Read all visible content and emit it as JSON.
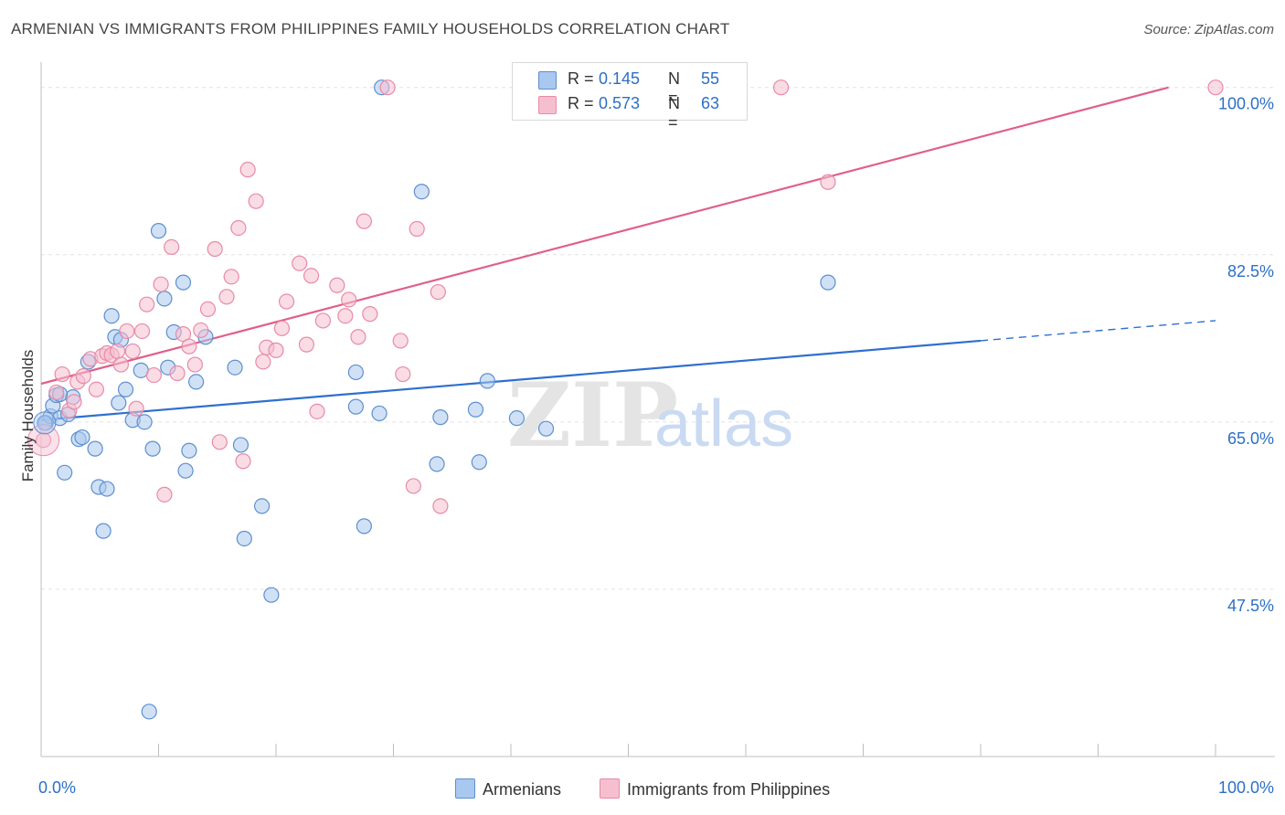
{
  "title": "ARMENIAN VS IMMIGRANTS FROM PHILIPPINES FAMILY HOUSEHOLDS CORRELATION CHART",
  "source": "Source: ZipAtlas.com",
  "watermark": {
    "zip": "ZIP",
    "atlas": "atlas"
  },
  "legend": {
    "armenians": {
      "r_label": "R =",
      "r_value": "0.145",
      "n_label": "N =",
      "n_value": "55"
    },
    "philippines": {
      "r_label": "R =",
      "r_value": "0.573",
      "n_label": "N =",
      "n_value": "63"
    }
  },
  "bottom_legend": {
    "armenians": "Armenians",
    "philippines": "Immigrants from Philippines"
  },
  "x_axis": {
    "min_label": "0.0%",
    "max_label": "100.0%"
  },
  "colors": {
    "blue_fill": "#a9c8ef",
    "blue_stroke": "#5d8fd0",
    "blue_line": "#2f6fcf",
    "pink_fill": "#f6bfd0",
    "pink_stroke": "#e88aa8",
    "pink_line": "#e0608a",
    "tick_label": "#2c6fc6"
  },
  "chart_data": {
    "type": "scatter",
    "title": "ARMENIAN VS IMMIGRANTS FROM PHILIPPINES FAMILY HOUSEHOLDS CORRELATION CHART",
    "xlabel": "",
    "ylabel": "Family Households",
    "xlim": [
      0,
      100
    ],
    "ylim": [
      30,
      101.5
    ],
    "y_ticks": [
      47.5,
      65.0,
      82.5,
      100.0
    ],
    "y_tick_labels": [
      "47.5%",
      "65.0%",
      "82.5%",
      "100.0%"
    ],
    "series": [
      {
        "name": "Armenians",
        "R": 0.145,
        "N": 55,
        "trend": {
          "x0": 0,
          "y0": 65.2,
          "x1": 80,
          "y1": 73.5,
          "dash_to_x": 100,
          "dash_to_y": 75.6
        },
        "points": [
          [
            0.4,
            64.9
          ],
          [
            0.8,
            65.6
          ],
          [
            1.0,
            66.7
          ],
          [
            1.3,
            67.8
          ],
          [
            1.6,
            65.4
          ],
          [
            2.0,
            59.7
          ],
          [
            2.3,
            65.8
          ],
          [
            2.7,
            67.6
          ],
          [
            3.2,
            63.2
          ],
          [
            3.5,
            63.4
          ],
          [
            4.0,
            71.3
          ],
          [
            4.6,
            62.2
          ],
          [
            4.9,
            58.2
          ],
          [
            5.3,
            53.6
          ],
          [
            5.6,
            58.0
          ],
          [
            6.0,
            76.1
          ],
          [
            6.3,
            73.9
          ],
          [
            6.6,
            67.0
          ],
          [
            6.8,
            73.6
          ],
          [
            7.2,
            68.4
          ],
          [
            7.8,
            65.2
          ],
          [
            8.5,
            70.4
          ],
          [
            8.8,
            65.0
          ],
          [
            9.5,
            62.2
          ],
          [
            10.0,
            85.0
          ],
          [
            10.5,
            77.9
          ],
          [
            10.8,
            70.7
          ],
          [
            11.3,
            74.4
          ],
          [
            12.1,
            79.6
          ],
          [
            12.3,
            59.9
          ],
          [
            12.6,
            62.0
          ],
          [
            13.2,
            69.2
          ],
          [
            14.0,
            73.9
          ],
          [
            16.5,
            70.7
          ],
          [
            17.0,
            62.6
          ],
          [
            17.3,
            52.8
          ],
          [
            18.8,
            56.2
          ],
          [
            19.6,
            46.9
          ],
          [
            26.8,
            70.2
          ],
          [
            26.8,
            66.6
          ],
          [
            27.5,
            54.1
          ],
          [
            28.8,
            65.9
          ],
          [
            29.0,
            100.0
          ],
          [
            32.4,
            89.1
          ],
          [
            33.7,
            60.6
          ],
          [
            34.0,
            65.5
          ],
          [
            37.0,
            66.3
          ],
          [
            37.3,
            60.8
          ],
          [
            38.0,
            69.3
          ],
          [
            40.5,
            65.4
          ],
          [
            43.0,
            64.3
          ],
          [
            67.0,
            79.6
          ],
          [
            9.2,
            34.7
          ],
          [
            1.6,
            67.9
          ],
          [
            0.3,
            64.9
          ]
        ]
      },
      {
        "name": "Immigrants from Philippines",
        "R": 0.573,
        "N": 63,
        "trend": {
          "x0": 0,
          "y0": 69.0,
          "x1": 96,
          "y1": 100.0
        },
        "points": [
          [
            0.2,
            63.1
          ],
          [
            1.3,
            68.1
          ],
          [
            1.8,
            70.0
          ],
          [
            2.4,
            66.2
          ],
          [
            2.8,
            67.1
          ],
          [
            3.1,
            69.2
          ],
          [
            3.6,
            69.8
          ],
          [
            4.2,
            71.6
          ],
          [
            4.7,
            68.4
          ],
          [
            5.2,
            71.9
          ],
          [
            5.6,
            72.2
          ],
          [
            6.0,
            72.0
          ],
          [
            6.5,
            72.4
          ],
          [
            6.8,
            71.0
          ],
          [
            7.3,
            74.5
          ],
          [
            7.8,
            72.4
          ],
          [
            8.1,
            66.4
          ],
          [
            8.6,
            74.5
          ],
          [
            9.0,
            77.3
          ],
          [
            9.6,
            69.9
          ],
          [
            10.2,
            79.4
          ],
          [
            10.5,
            57.4
          ],
          [
            11.1,
            83.3
          ],
          [
            11.6,
            70.1
          ],
          [
            12.1,
            74.2
          ],
          [
            12.6,
            72.9
          ],
          [
            13.1,
            71.0
          ],
          [
            13.6,
            74.6
          ],
          [
            14.2,
            76.8
          ],
          [
            14.8,
            83.1
          ],
          [
            15.2,
            62.9
          ],
          [
            15.8,
            78.1
          ],
          [
            16.2,
            80.2
          ],
          [
            16.8,
            85.3
          ],
          [
            17.2,
            60.9
          ],
          [
            17.6,
            91.4
          ],
          [
            18.3,
            88.1
          ],
          [
            18.9,
            71.3
          ],
          [
            19.2,
            72.8
          ],
          [
            20.0,
            72.5
          ],
          [
            20.5,
            74.8
          ],
          [
            20.9,
            77.6
          ],
          [
            22.0,
            81.6
          ],
          [
            22.6,
            73.1
          ],
          [
            23.0,
            80.3
          ],
          [
            23.5,
            66.1
          ],
          [
            24.0,
            75.6
          ],
          [
            25.2,
            79.3
          ],
          [
            25.9,
            76.1
          ],
          [
            26.2,
            77.8
          ],
          [
            27.0,
            73.9
          ],
          [
            27.5,
            86.0
          ],
          [
            28.0,
            76.3
          ],
          [
            29.5,
            100.0
          ],
          [
            30.6,
            73.5
          ],
          [
            30.8,
            70.0
          ],
          [
            31.7,
            58.3
          ],
          [
            32.0,
            85.2
          ],
          [
            33.8,
            78.6
          ],
          [
            34.0,
            56.2
          ],
          [
            63.0,
            100.0
          ],
          [
            67.0,
            90.1
          ],
          [
            100.0,
            100.0
          ]
        ]
      }
    ]
  }
}
